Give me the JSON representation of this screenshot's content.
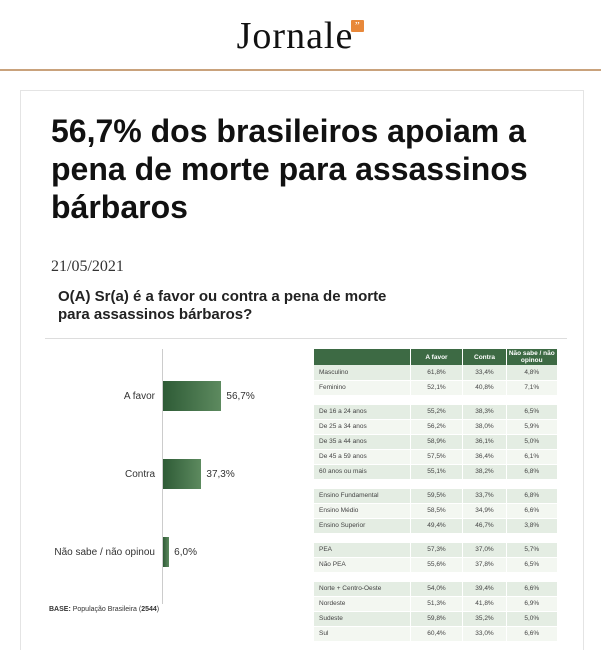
{
  "site": {
    "name": "Jornale",
    "quote_mark": "”"
  },
  "article": {
    "title": "56,7% dos brasileiros apoiam a pena de morte para assassinos bárbaros",
    "date": "21/05/2021"
  },
  "infographic": {
    "question": "O(A) Sr(a) é a favor ou contra a pena de morte para assassinos bárbaros?",
    "base_label": "BASE:",
    "base_text": " População Brasileira (",
    "base_n": "2544",
    "base_end": ")",
    "chart_data": {
      "type": "bar",
      "orientation": "horizontal",
      "categories": [
        "A favor",
        "Contra",
        "Não sabe / não opinou"
      ],
      "values": [
        56.7,
        37.3,
        6.0
      ],
      "value_labels": [
        "56,7%",
        "37,3%",
        "6,0%"
      ],
      "xlim": [
        0,
        100
      ]
    },
    "table": {
      "headers": [
        "",
        "A favor",
        "Contra",
        "Não sabe / não opinou"
      ],
      "groups": [
        [
          [
            "Masculino",
            "61,8%",
            "33,4%",
            "4,8%"
          ],
          [
            "Feminino",
            "52,1%",
            "40,8%",
            "7,1%"
          ]
        ],
        [
          [
            "De 16 a 24 anos",
            "55,2%",
            "38,3%",
            "6,5%"
          ],
          [
            "De 25 a 34 anos",
            "56,2%",
            "38,0%",
            "5,9%"
          ],
          [
            "De 35 a 44 anos",
            "58,9%",
            "36,1%",
            "5,0%"
          ],
          [
            "De 45 a 59 anos",
            "57,5%",
            "36,4%",
            "6,1%"
          ],
          [
            "60 anos ou mais",
            "55,1%",
            "38,2%",
            "6,8%"
          ]
        ],
        [
          [
            "Ensino Fundamental",
            "59,5%",
            "33,7%",
            "6,8%"
          ],
          [
            "Ensino Médio",
            "58,5%",
            "34,9%",
            "6,6%"
          ],
          [
            "Ensino Superior",
            "49,4%",
            "46,7%",
            "3,8%"
          ]
        ],
        [
          [
            "PEA",
            "57,3%",
            "37,0%",
            "5,7%"
          ],
          [
            "Não PEA",
            "55,6%",
            "37,8%",
            "6,5%"
          ]
        ],
        [
          [
            "Norte + Centro-Oeste",
            "54,0%",
            "39,4%",
            "6,6%"
          ],
          [
            "Nordeste",
            "51,3%",
            "41,8%",
            "6,9%"
          ],
          [
            "Sudeste",
            "59,8%",
            "35,2%",
            "5,0%"
          ],
          [
            "Sul",
            "60,4%",
            "33,0%",
            "6,6%"
          ]
        ]
      ]
    }
  }
}
